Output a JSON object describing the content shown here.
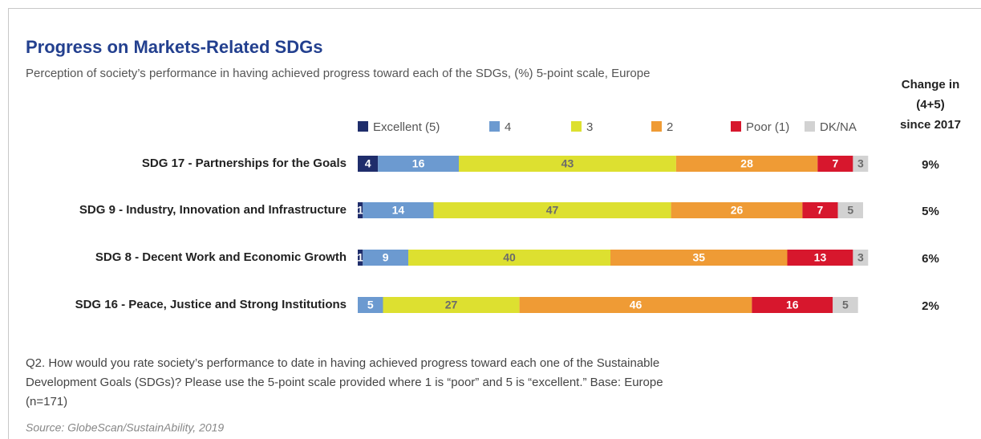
{
  "chart_data": {
    "type": "stacked-bar-horizontal",
    "title": "Progress on Markets-Related SDGs",
    "subtitle": "Perception of society’s performance in having achieved progress toward each of the SDGs, (%) 5-point scale, Europe",
    "categories": [
      "SDG 17 - Partnerships for the Goals",
      "SDG 9 - Industry, Innovation and Infrastructure",
      "SDG 8 - Decent Work and Economic Growth",
      "SDG 16 - Peace, Justice and Strong Institutions"
    ],
    "xlim": [
      0,
      100
    ],
    "series": [
      {
        "name": "Excellent (5)",
        "color": "#1f2d6b",
        "label_color": "#ffffff",
        "values": [
          4,
          1,
          1,
          0
        ]
      },
      {
        "name": "4",
        "color": "#6c9ad0",
        "label_color": "#ffffff",
        "values": [
          16,
          14,
          9,
          5
        ]
      },
      {
        "name": "3",
        "color": "#dde030",
        "label_color": "#6b6b6b",
        "values": [
          43,
          47,
          40,
          27
        ]
      },
      {
        "name": "2",
        "color": "#ef9b35",
        "label_color": "#ffffff",
        "values": [
          28,
          26,
          35,
          46
        ]
      },
      {
        "name": "Poor (1)",
        "color": "#d7172d",
        "label_color": "#ffffff",
        "values": [
          7,
          7,
          13,
          16
        ]
      },
      {
        "name": "DK/NA",
        "color": "#d2d2d2",
        "label_color": "#6b6b6b",
        "values": [
          3,
          5,
          3,
          5
        ]
      }
    ],
    "change": {
      "title": [
        "Change in",
        "(4+5)",
        "since 2017"
      ],
      "values": [
        9,
        5,
        6,
        2
      ],
      "value_labels": [
        "9%",
        "5%",
        "6%",
        "2%"
      ]
    },
    "note": [
      "Q2. How would you rate society’s performance to date in having achieved progress toward each one of the Sustainable",
      "Development Goals (SDGs)? Please use the 5-point scale provided where 1 is “poor” and 5 is “excellent.” Base: Europe",
      "(n=171)"
    ],
    "source": "Source: GlobeScan/SustainAbility, 2019"
  }
}
